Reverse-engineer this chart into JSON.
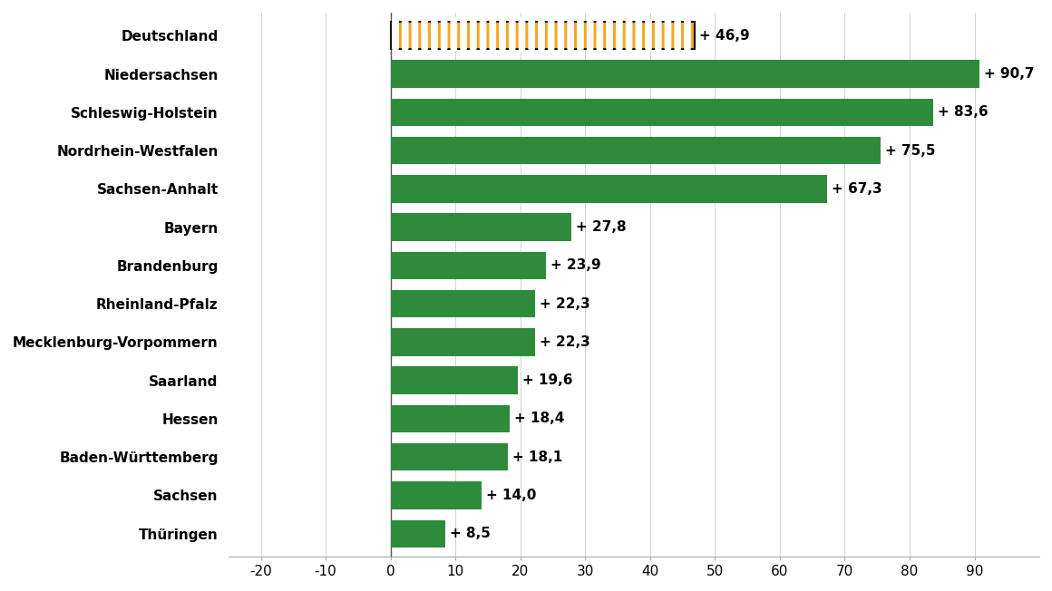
{
  "categories": [
    "Deutschland",
    "Niedersachsen",
    "Schleswig-Holstein",
    "Nordrhein-Westfalen",
    "Sachsen-Anhalt",
    "Bayern",
    "Brandenburg",
    "Rheinland-Pfalz",
    "Mecklenburg-Vorpommern",
    "Saarland",
    "Hessen",
    "Baden-Württemberg",
    "Sachsen",
    "Thüringen"
  ],
  "values": [
    46.9,
    90.7,
    83.6,
    75.5,
    67.3,
    27.8,
    23.9,
    22.3,
    22.3,
    19.6,
    18.4,
    18.1,
    14.0,
    8.5
  ],
  "labels": [
    "+ 46,9",
    "+ 90,7",
    "+ 83,6",
    "+ 75,5",
    "+ 67,3",
    "+ 27,8",
    "+ 23,9",
    "+ 22,3",
    "+ 22,3",
    "+ 19,6",
    "+ 18,4",
    "+ 18,1",
    "+ 14,0",
    "+ 8,5"
  ],
  "bar_colors": [
    "#F5A623",
    "#2E8B3C",
    "#2E8B3C",
    "#2E8B3C",
    "#2E8B3C",
    "#2E8B3C",
    "#2E8B3C",
    "#2E8B3C",
    "#2E8B3C",
    "#2E8B3C",
    "#2E8B3C",
    "#2E8B3C",
    "#2E8B3C",
    "#2E8B3C"
  ],
  "deutschland_color": "#F5A623",
  "green_color": "#2E8B3C",
  "xlim": [
    -25,
    100
  ],
  "xticks": [
    -20,
    -10,
    0,
    10,
    20,
    30,
    40,
    50,
    60,
    70,
    80,
    90
  ],
  "background_color": "#ffffff",
  "label_fontsize": 11,
  "tick_fontsize": 11,
  "category_fontsize": 11,
  "bar_height": 0.72,
  "figsize": [
    11.6,
    6.52
  ],
  "dpi": 100
}
